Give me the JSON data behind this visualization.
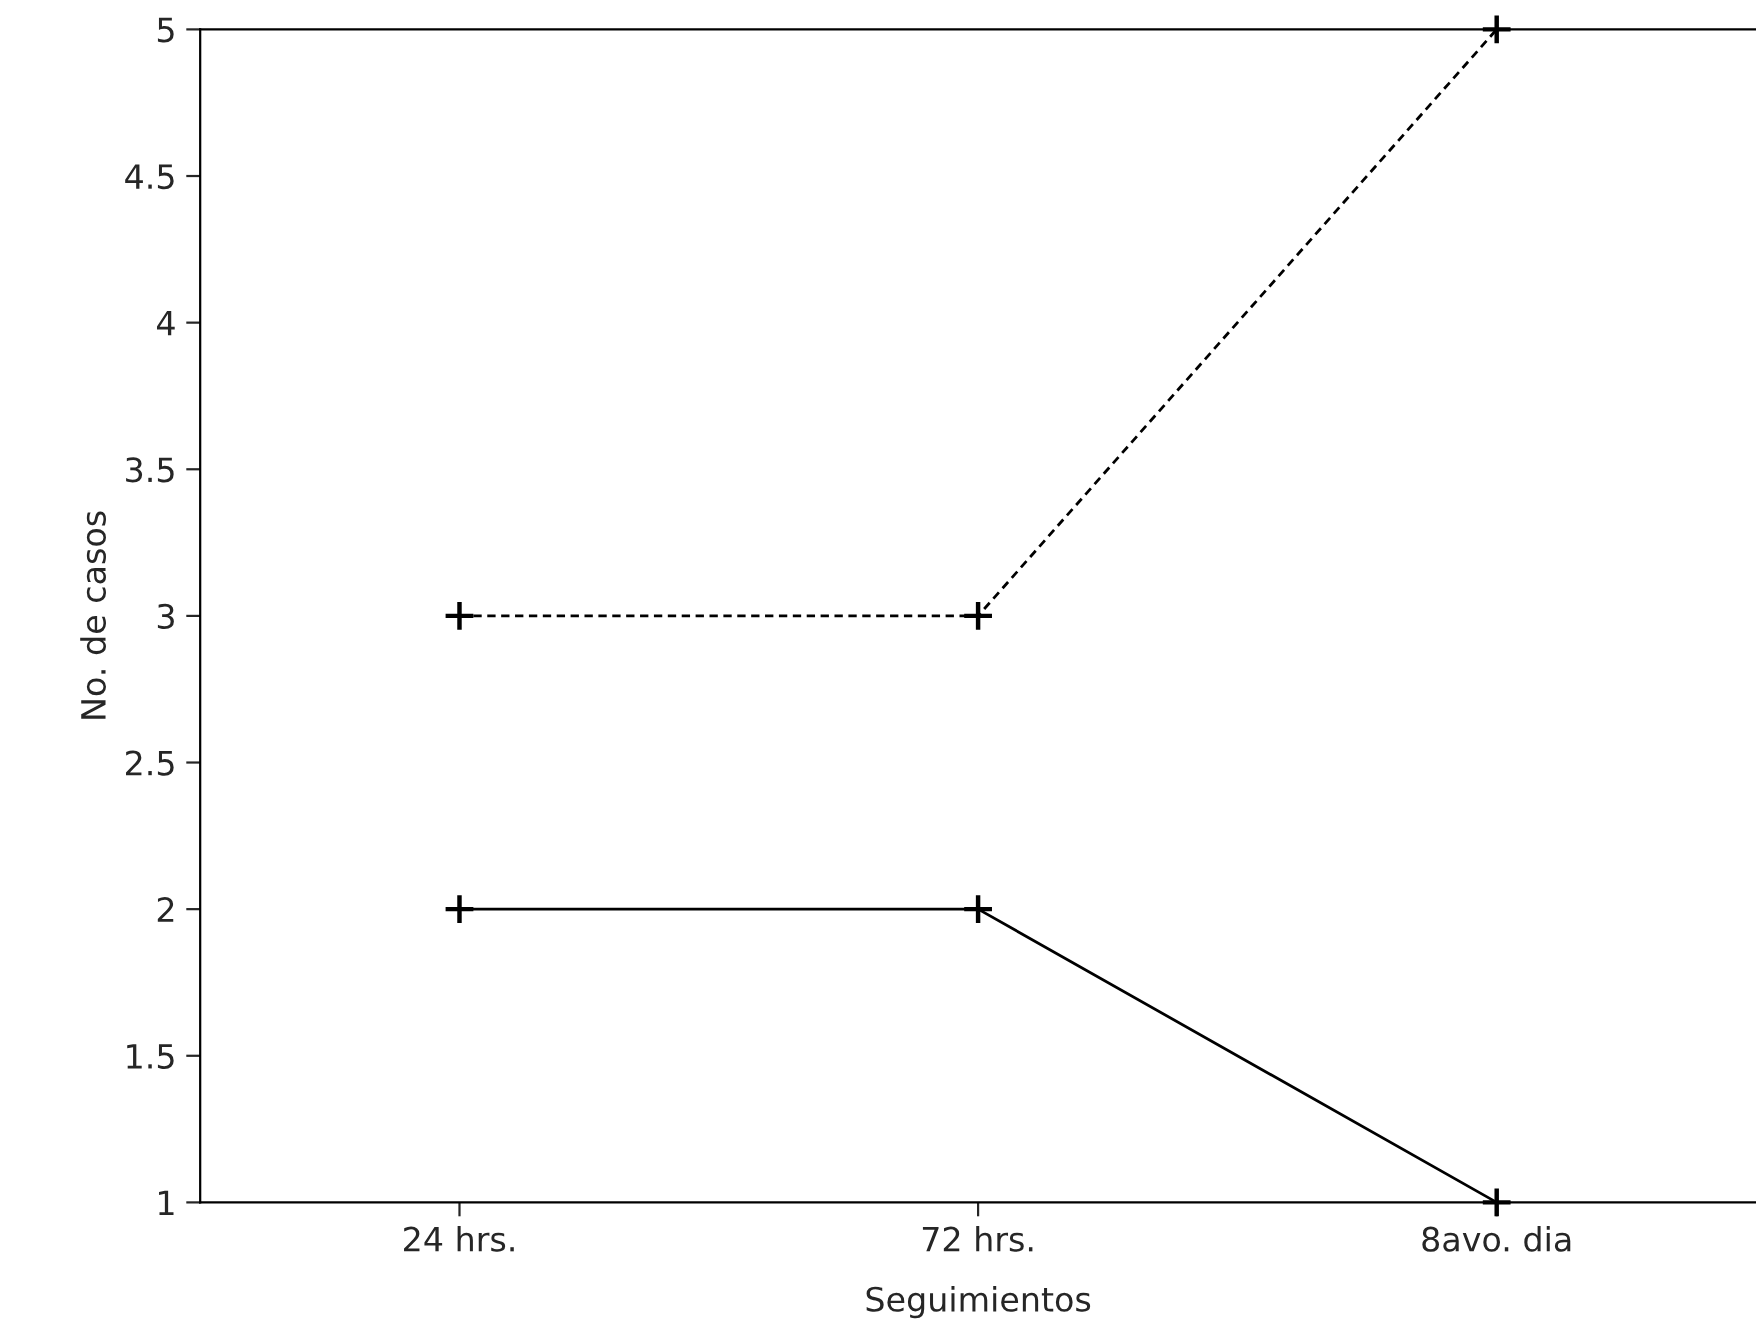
{
  "chart_data": {
    "type": "line",
    "xlabel": "Seguimientos",
    "ylabel": "No. de casos",
    "categories": [
      "24 hrs.",
      "72 hrs.",
      "8avo. dia"
    ],
    "series": [
      {
        "color": "#000000",
        "line_style": "dashed",
        "values": [
          3,
          3,
          5
        ]
      },
      {
        "color": "#000000",
        "line_style": "solid",
        "values": [
          2,
          2,
          1
        ]
      }
    ],
    "ylim": [
      1,
      5
    ],
    "yticks": [
      1,
      1.5,
      2,
      2.5,
      3,
      3.5,
      4,
      4.5,
      5
    ],
    "marker": "cross",
    "grid": false,
    "legend": false
  }
}
